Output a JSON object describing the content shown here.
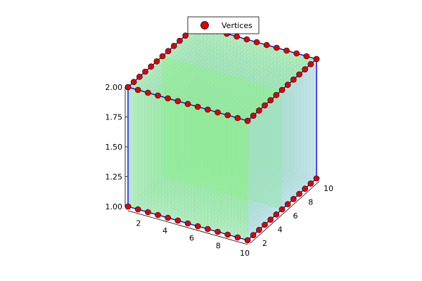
{
  "chart_data": {
    "type": "scatter",
    "title": "",
    "xlabel": "",
    "ylabel": "",
    "zlabel": "",
    "xlim": [
      1,
      10
    ],
    "ylim": [
      1,
      10
    ],
    "zlim": [
      1,
      2
    ],
    "x_ticks": [
      "2",
      "4",
      "6",
      "8",
      "10"
    ],
    "y_ticks": [
      "2",
      "4",
      "6",
      "8",
      "10"
    ],
    "z_ticks": [
      "1.00",
      "1.25",
      "1.50",
      "1.75",
      "2.00"
    ],
    "legend": {
      "position": "top",
      "entries": [
        "Vertices"
      ]
    },
    "series": [
      {
        "name": "Vertices",
        "marker": "circle",
        "color": "#e00000",
        "description": "vertices along the 12 edges of the box x∈[1,10], y∈[1,10], z∈{1,2}"
      }
    ],
    "surface": {
      "faces": "rectangular box with a slab at mid-y",
      "face_color": "#90ee90",
      "edge_color": "#0000ff",
      "secondary_color": "#add8e6"
    },
    "grid": false
  }
}
